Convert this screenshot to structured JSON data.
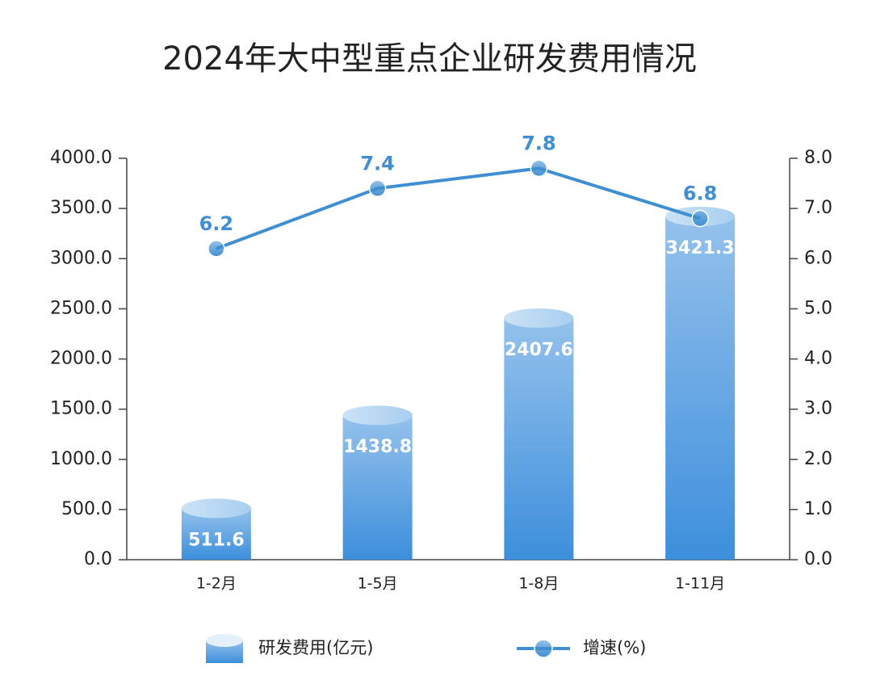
{
  "chart_data": {
    "type": "bar",
    "title": "2024年大中型重点企业研发费用情况",
    "categories": [
      "1-2月",
      "1-5月",
      "1-8月",
      "1-11月"
    ],
    "series": [
      {
        "name": "研发费用(亿元)",
        "type": "bar",
        "color": "#3d8fdc",
        "values": [
          511.6,
          1438.8,
          2407.6,
          3421.3
        ]
      },
      {
        "name": "增速(%)",
        "type": "line",
        "axis": "y2",
        "color": "#3f8fd2",
        "values": [
          6.2,
          7.4,
          7.8,
          6.8
        ]
      }
    ],
    "ylim": [
      0,
      4000
    ],
    "yticks": [
      {
        "value": 0,
        "label": "0.0"
      },
      {
        "value": 500,
        "label": "500.0"
      },
      {
        "value": 1000,
        "label": "1000.0"
      },
      {
        "value": 1500,
        "label": "1500.0"
      },
      {
        "value": 2000,
        "label": "2000.0"
      },
      {
        "value": 2500,
        "label": "2500.0"
      },
      {
        "value": 3000,
        "label": "3000.0"
      },
      {
        "value": 3500,
        "label": "3500.0"
      },
      {
        "value": 4000,
        "label": "4000.0"
      }
    ],
    "y2lim": [
      0,
      8
    ],
    "y2ticks": [
      {
        "value": 0,
        "label": "0.0"
      },
      {
        "value": 1,
        "label": "1.0"
      },
      {
        "value": 2,
        "label": "2.0"
      },
      {
        "value": 3,
        "label": "3.0"
      },
      {
        "value": 4,
        "label": "4.0"
      },
      {
        "value": 5,
        "label": "5.0"
      },
      {
        "value": 6,
        "label": "6.0"
      },
      {
        "value": 7,
        "label": "7.0"
      },
      {
        "value": 8,
        "label": "8.0"
      }
    ],
    "legend": "bottom"
  }
}
